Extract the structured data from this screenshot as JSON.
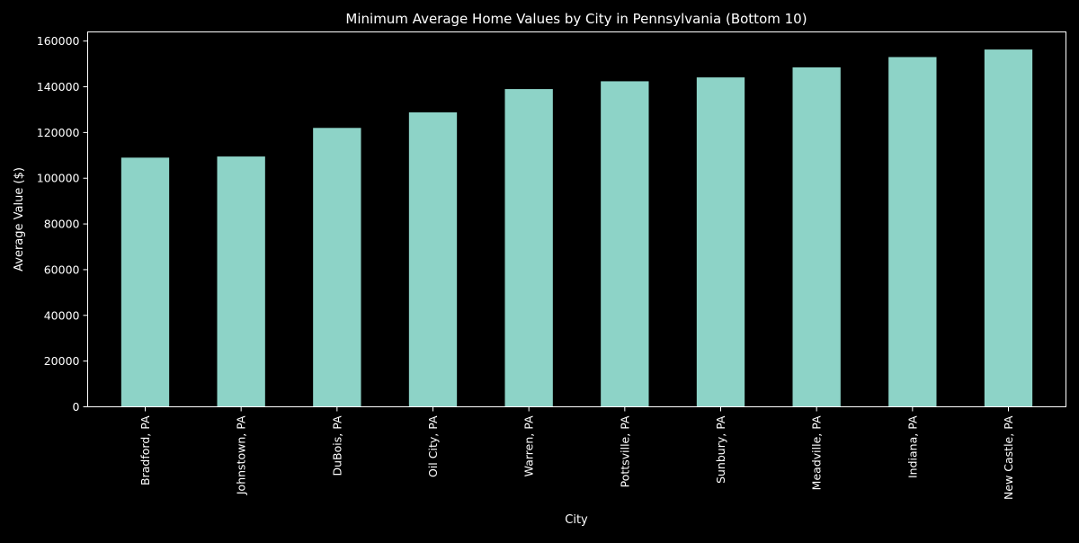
{
  "chart_data": {
    "type": "bar",
    "title": "Minimum Average Home Values by City in Pennsylvania (Bottom 10)",
    "xlabel": "City",
    "ylabel": "Average Value ($)",
    "categories": [
      "Bradford, PA",
      "Johnstown, PA",
      "DuBois, PA",
      "Oil City, PA",
      "Warren, PA",
      "Pottsville, PA",
      "Sunbury, PA",
      "Meadville, PA",
      "Indiana, PA",
      "New Castle, PA"
    ],
    "values": [
      109000,
      109500,
      122000,
      128800,
      139000,
      142400,
      144100,
      148500,
      153000,
      156300
    ],
    "ylim": [
      0,
      164000
    ],
    "yticks": [
      0,
      20000,
      40000,
      60000,
      80000,
      100000,
      120000,
      140000,
      160000
    ],
    "grid": false,
    "legend": "none",
    "colors": {
      "background": "#000000",
      "bar": "#8dd3c7",
      "axis": "#ffffff",
      "text": "#ffffff"
    }
  }
}
